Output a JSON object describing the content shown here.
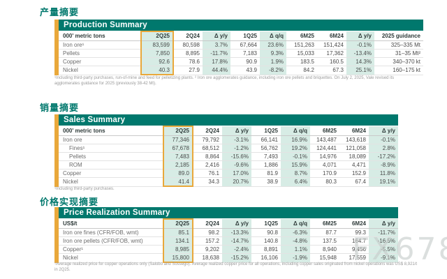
{
  "watermark": "FX678",
  "sections": [
    {
      "cn_title": "产量摘要",
      "en_title": "Production Summary",
      "unit": "000' metric tons",
      "columns": [
        "2Q25",
        "2Q24",
        "Δ y/y",
        "1Q25",
        "Δ q/q",
        "6M25",
        "6M24",
        "Δ y/y",
        "2025 guidance"
      ],
      "rows": [
        {
          "label": "Iron ore¹",
          "indent": false,
          "values": [
            "83,599",
            "80,598",
            "3.7%",
            "67,664",
            "23.6%",
            "151,263",
            "151,424",
            "-0.1%",
            "325–335 Mt"
          ]
        },
        {
          "label": "Pellets",
          "indent": false,
          "values": [
            "7,850",
            "8,895",
            "-11.7%",
            "7,183",
            "9.3%",
            "15,033",
            "17,362",
            "-13.4%",
            "31–35 Mt²"
          ]
        },
        {
          "label": "Copper",
          "indent": false,
          "values": [
            "92.6",
            "78.6",
            "17.8%",
            "90.9",
            "1.9%",
            "183.5",
            "160.5",
            "14.3%",
            "340–370 kt"
          ]
        },
        {
          "label": "Nickel",
          "indent": false,
          "values": [
            "40.3",
            "27.9",
            "44.4%",
            "43.9",
            "-8.2%",
            "84.2",
            "67.3",
            "25.1%",
            "160–175 kt"
          ]
        }
      ],
      "footnote": "¹Including third-party purchases, run-of-mine and feed for pelletizing plants. ² Iron ore agglomerates guidance, including iron ore pellets and briquettes. On July 2, 2025, Vale revised its agglomerates guidance for 2025 (previously 38-42 Mt)."
    },
    {
      "cn_title": "销量摘要",
      "en_title": "Sales Summary",
      "unit": "000' metric tons",
      "columns": [
        "2Q25",
        "2Q24",
        "Δ y/y",
        "1Q25",
        "Δ q/q",
        "6M25",
        "6M24",
        "Δ y/y"
      ],
      "rows": [
        {
          "label": "Iron ore",
          "indent": false,
          "values": [
            "77,346",
            "79,792",
            "-3.1%",
            "66,141",
            "16.9%",
            "143,487",
            "143,618",
            "-0.1%"
          ]
        },
        {
          "label": "Fines¹",
          "indent": true,
          "values": [
            "67,678",
            "68,512",
            "-1.2%",
            "56,762",
            "19.2%",
            "124,441",
            "121,058",
            "2.8%"
          ]
        },
        {
          "label": "Pellets",
          "indent": true,
          "values": [
            "7,483",
            "8,864",
            "-15.6%",
            "7,493",
            "-0.1%",
            "14,976",
            "18,089",
            "-17.2%"
          ]
        },
        {
          "label": "ROM",
          "indent": true,
          "values": [
            "2,185",
            "2,416",
            "-9.6%",
            "1,886",
            "15.9%",
            "4,071",
            "4,471",
            "-8.9%"
          ]
        },
        {
          "label": "Copper",
          "indent": false,
          "values": [
            "89.0",
            "76.1",
            "17.0%",
            "81.9",
            "8.7%",
            "170.9",
            "152.9",
            "11.8%"
          ]
        },
        {
          "label": "Nickel",
          "indent": false,
          "values": [
            "41.4",
            "34.3",
            "20.7%",
            "38.9",
            "6.4%",
            "80.3",
            "67.4",
            "19.1%"
          ]
        }
      ],
      "footnote": "¹Including third-party purchases."
    },
    {
      "cn_title": "价格实现摘要",
      "en_title": "Price Realization Summary",
      "unit": "US$/t",
      "columns": [
        "2Q25",
        "2Q24",
        "Δ y/y",
        "1Q25",
        "Δ q/q",
        "6M25",
        "6M24",
        "Δ y/y"
      ],
      "rows": [
        {
          "label": "Iron ore fines (CFR/FOB, wmt)",
          "indent": false,
          "values": [
            "85.1",
            "98.2",
            "-13.3%",
            "90.8",
            "-6.3%",
            "87.7",
            "99.3",
            "-11.7%"
          ]
        },
        {
          "label": "Iron ore pellets (CFR/FOB, wmt)",
          "indent": false,
          "values": [
            "134.1",
            "157.2",
            "-14.7%",
            "140.8",
            "-4.8%",
            "137.5",
            "164.7",
            "-16.5%"
          ]
        },
        {
          "label": "Copper¹",
          "indent": false,
          "values": [
            "8,985",
            "9,202",
            "-2.4%",
            "8,891",
            "1.1%",
            "8,940",
            "9,456",
            "-5.5%"
          ]
        },
        {
          "label": "Nickel",
          "indent": false,
          "values": [
            "15,800",
            "18,638",
            "-15.2%",
            "16,106",
            "-1.9%",
            "15,948",
            "17,559",
            "-9.1%"
          ]
        }
      ],
      "footnote": "¹Average realized price for copper operations only (Salobo and Sossego). Average realized copper price for all operations, including copper sales originated from nickel operations was US$ 8,921/t in 2Q25."
    }
  ]
}
